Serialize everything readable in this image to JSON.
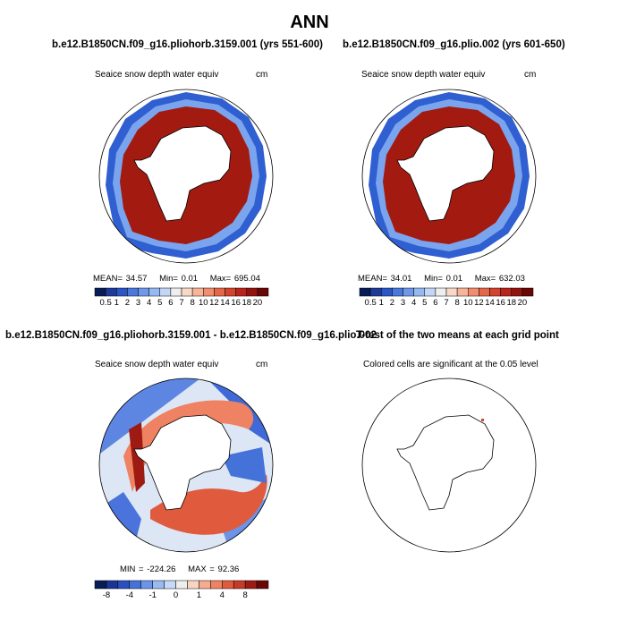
{
  "page_title": "ANN",
  "panels": [
    {
      "title": "b.e12.B1850CN.f09_g16.pliohorb.3159.001 (yrs 551-600)",
      "var_label": "Seaice snow depth water equiv",
      "units": "cm",
      "stats": {
        "mean_label": "MEAN=",
        "mean": "34.57",
        "min_label": "Min=",
        "min": "0.01",
        "max_label": "Max=",
        "max": "695.04"
      }
    },
    {
      "title": "b.e12.B1850CN.f09_g16.plio.002 (yrs 601-650)",
      "var_label": "Seaice snow depth water equiv",
      "units": "cm",
      "stats": {
        "mean_label": "MEAN=",
        "mean": "34.01",
        "min_label": "Min=",
        "min": "0.01",
        "max_label": "Max=",
        "max": "632.03"
      }
    },
    {
      "title": "b.e12.B1850CN.f09_g16.pliohorb.3159.001 - b.e12.B1850CN.f09_g16.plio.002",
      "var_label": "Seaice snow depth water equiv",
      "units": "cm",
      "stats": {
        "min_label": "MIN =",
        "min": "-224.26",
        "max_label": "MAX =",
        "max": "92.36"
      }
    },
    {
      "title": "T-test of the two means at each grid point",
      "var_label": "Colored cells are significant at the 0.05 level"
    }
  ],
  "colorbar_abs": {
    "colors": [
      "#081d58",
      "#1f3a99",
      "#2c56c5",
      "#4a78dd",
      "#6f98ea",
      "#97b9f2",
      "#c3d6f6",
      "#eeeeee",
      "#f8d8c6",
      "#f6b49a",
      "#f08e6f",
      "#e5674a",
      "#d3432e",
      "#b8251c",
      "#93140f",
      "#6b0606"
    ],
    "labels": [
      "0.5",
      "1",
      "2",
      "3",
      "4",
      "5",
      "6",
      "7",
      "8",
      "10",
      "12",
      "14",
      "16",
      "18",
      "20"
    ]
  },
  "colorbar_diff": {
    "colors": [
      "#081d58",
      "#1a3594",
      "#2a50c0",
      "#4572d9",
      "#6b95ea",
      "#99bbf3",
      "#c6d9f7",
      "#eeeeee",
      "#f8d5c2",
      "#f5ab8f",
      "#ee8262",
      "#e05a3e",
      "#c63a27",
      "#9e1b13",
      "#6b0606"
    ],
    "labels": [
      "-8",
      "-4",
      "-1",
      "0",
      "1",
      "4",
      "8"
    ]
  },
  "legend_colors": {
    "sea_ice_high": "#a31a10",
    "land": "#ffffff",
    "coast": "#000000",
    "significant": "#c84a2a"
  }
}
